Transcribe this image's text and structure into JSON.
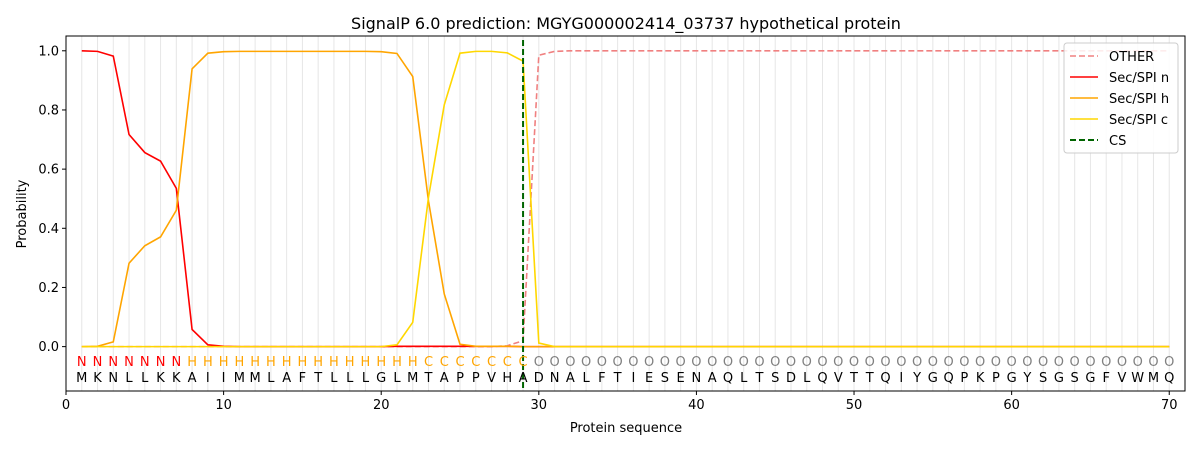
{
  "chart_data": {
    "type": "line",
    "title": "SignalP 6.0 prediction: MGYG000002414_03737 hypothetical protein",
    "xlabel": "Protein sequence",
    "ylabel": "Probability",
    "xlim": [
      0,
      71
    ],
    "ylim": [
      -0.15,
      1.05
    ],
    "xticks": [
      0,
      10,
      20,
      30,
      40,
      50,
      60,
      70
    ],
    "yticks": [
      0.0,
      0.2,
      0.4,
      0.6,
      0.8,
      1.0
    ],
    "ytick_labels": [
      "0.0",
      "0.2",
      "0.4",
      "0.6",
      "0.8",
      "1.0"
    ],
    "grid": "vertical lines at each residue",
    "legend_position": "top-right",
    "sequence": [
      "M",
      "K",
      "N",
      "L",
      "L",
      "K",
      "K",
      "A",
      "I",
      "I",
      "M",
      "M",
      "L",
      "A",
      "F",
      "T",
      "L",
      "L",
      "L",
      "G",
      "L",
      "M",
      "T",
      "A",
      "P",
      "P",
      "V",
      "H",
      "A",
      "D",
      "N",
      "A",
      "L",
      "F",
      "T",
      "I",
      "E",
      "S",
      "E",
      "N",
      "A",
      "Q",
      "L",
      "T",
      "S",
      "D",
      "L",
      "Q",
      "V",
      "T",
      "T",
      "Q",
      "I",
      "Y",
      "G",
      "Q",
      "P",
      "K",
      "P",
      "G",
      "Y",
      "S",
      "G",
      "S",
      "G",
      "F",
      "V",
      "W",
      "M",
      "Q"
    ],
    "labels": [
      "N",
      "N",
      "N",
      "N",
      "N",
      "N",
      "N",
      "H",
      "H",
      "H",
      "H",
      "H",
      "H",
      "H",
      "H",
      "H",
      "H",
      "H",
      "H",
      "H",
      "H",
      "H",
      "C",
      "C",
      "C",
      "C",
      "C",
      "C",
      "C",
      "O",
      "O",
      "O",
      "O",
      "O",
      "O",
      "O",
      "O",
      "O",
      "O",
      "O",
      "O",
      "O",
      "O",
      "O",
      "O",
      "O",
      "O",
      "O",
      "O",
      "O",
      "O",
      "O",
      "O",
      "O",
      "O",
      "O",
      "O",
      "O",
      "O",
      "O",
      "O",
      "O",
      "O",
      "O",
      "O",
      "O",
      "O",
      "O",
      "O",
      "O"
    ],
    "label_colors": {
      "N": "#ff0000",
      "H": "#ffa500",
      "C": "#ffa500",
      "O": "#808080"
    },
    "x": [
      1,
      2,
      3,
      4,
      5,
      6,
      7,
      8,
      9,
      10,
      11,
      12,
      13,
      14,
      15,
      16,
      17,
      18,
      19,
      20,
      21,
      22,
      23,
      24,
      25,
      26,
      27,
      28,
      29,
      30,
      31,
      32,
      33,
      34,
      35,
      36,
      37,
      38,
      39,
      40,
      41,
      42,
      43,
      44,
      45,
      46,
      47,
      48,
      49,
      50,
      51,
      52,
      53,
      54,
      55,
      56,
      57,
      58,
      59,
      60,
      61,
      62,
      63,
      64,
      65,
      66,
      67,
      68,
      69,
      70
    ],
    "series": [
      {
        "name": "OTHER",
        "color": "#f08080",
        "dash": "dashed",
        "values": [
          0,
          0,
          0,
          0,
          0,
          0,
          0,
          0,
          0,
          0,
          0,
          0,
          0,
          0,
          0,
          0,
          0,
          0,
          0,
          0,
          0,
          0,
          0,
          0,
          0,
          0,
          0,
          0.003,
          0.02,
          0.985,
          0.998,
          1,
          1,
          1,
          1,
          1,
          1,
          1,
          1,
          1,
          1,
          1,
          1,
          1,
          1,
          1,
          1,
          1,
          1,
          1,
          1,
          1,
          1,
          1,
          1,
          1,
          1,
          1,
          1,
          1,
          1,
          1,
          1,
          1,
          1,
          1,
          1,
          1,
          1,
          1
        ]
      },
      {
        "name": "Sec/SPI n",
        "color": "#ff0000",
        "dash": "solid",
        "values": [
          1.0,
          0.998,
          0.982,
          0.717,
          0.656,
          0.627,
          0.535,
          0.058,
          0.006,
          0.001,
          0,
          0,
          0,
          0,
          0,
          0,
          0,
          0,
          0,
          0,
          0.001,
          0.001,
          0.001,
          0.001,
          0.001,
          0.001,
          0.001,
          0.001,
          0,
          0,
          0,
          0,
          0,
          0,
          0,
          0,
          0,
          0,
          0,
          0,
          0,
          0,
          0,
          0,
          0,
          0,
          0,
          0,
          0,
          0,
          0,
          0,
          0,
          0,
          0,
          0,
          0,
          0,
          0,
          0,
          0,
          0,
          0,
          0,
          0,
          0,
          0,
          0,
          0,
          0
        ]
      },
      {
        "name": "Sec/SPI h",
        "color": "#ffa500",
        "dash": "solid",
        "values": [
          0,
          0.001,
          0.016,
          0.282,
          0.341,
          0.371,
          0.461,
          0.939,
          0.992,
          0.997,
          0.998,
          0.998,
          0.998,
          0.998,
          0.998,
          0.998,
          0.998,
          0.998,
          0.998,
          0.997,
          0.991,
          0.913,
          0.492,
          0.178,
          0.008,
          0.001,
          0.001,
          0.001,
          0,
          0,
          0,
          0,
          0,
          0,
          0,
          0,
          0,
          0,
          0,
          0,
          0,
          0,
          0,
          0,
          0,
          0,
          0,
          0,
          0,
          0,
          0,
          0,
          0,
          0,
          0,
          0,
          0,
          0,
          0,
          0,
          0,
          0,
          0,
          0,
          0,
          0,
          0,
          0,
          0,
          0
        ]
      },
      {
        "name": "Sec/SPI c",
        "color": "#ffd700",
        "dash": "solid",
        "values": [
          0,
          0,
          0,
          0,
          0,
          0,
          0,
          0,
          0,
          0,
          0,
          0,
          0,
          0,
          0,
          0,
          0,
          0,
          0,
          0,
          0.006,
          0.082,
          0.505,
          0.817,
          0.992,
          0.998,
          0.998,
          0.993,
          0.965,
          0.012,
          0,
          0,
          0,
          0,
          0,
          0,
          0,
          0,
          0,
          0,
          0,
          0,
          0,
          0,
          0,
          0,
          0,
          0,
          0,
          0,
          0,
          0,
          0,
          0,
          0,
          0,
          0,
          0,
          0,
          0,
          0,
          0,
          0,
          0,
          0,
          0,
          0,
          0,
          0,
          0
        ]
      }
    ],
    "cs": {
      "name": "CS",
      "x": 29,
      "color": "#006400",
      "dash": "dashed"
    }
  }
}
